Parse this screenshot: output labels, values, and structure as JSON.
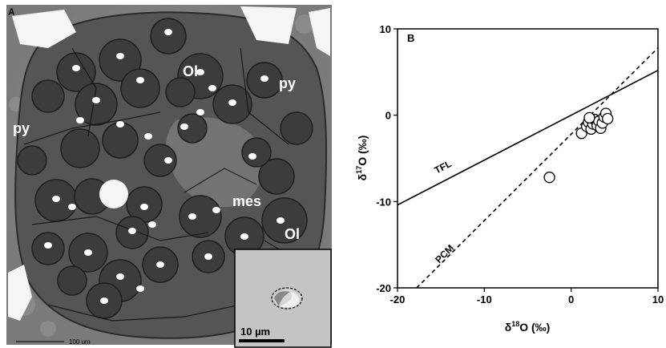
{
  "panel_a": {
    "letter": "A",
    "labels": {
      "py_left": "py",
      "py_right": "py",
      "ol_top": "Ol",
      "ol_bottom": "Ol",
      "mes": "mes"
    },
    "scalebar_label": "100 um",
    "inset_scalebar_label": "10 µm"
  },
  "chart_data": {
    "type": "scatter",
    "panel_letter": "B",
    "xlabel_prefix": "δ",
    "xlabel_sup": "18",
    "xlabel_suffix": "O (‰)",
    "ylabel_prefix": "δ",
    "ylabel_sup": "17",
    "ylabel_suffix": "O (‰)",
    "xlim": [
      -20,
      10
    ],
    "ylim": [
      -20,
      10
    ],
    "xticks": [
      "-20",
      "-10",
      "0",
      "10"
    ],
    "yticks": [
      "-20",
      "-10",
      "0",
      "10"
    ],
    "lines": [
      {
        "label": "TFL",
        "style": "solid",
        "slope": 0.52,
        "intercept": 0,
        "label_at": [
          -15.5,
          -6.8
        ]
      },
      {
        "label": "PCM",
        "style": "dashed",
        "slope": 1.0,
        "intercept": -2.2,
        "label_at": [
          -15.2,
          -17.2
        ]
      }
    ],
    "points": [
      [
        -2.5,
        -7.2
      ],
      [
        1.2,
        -2.1
      ],
      [
        1.8,
        -1.3
      ],
      [
        2.0,
        -0.8
      ],
      [
        2.3,
        -1.6
      ],
      [
        2.5,
        -1.0
      ],
      [
        2.7,
        -0.5
      ],
      [
        3.0,
        -1.2
      ],
      [
        3.2,
        -0.7
      ],
      [
        3.4,
        -1.5
      ],
      [
        3.6,
        -0.9
      ],
      [
        3.8,
        -0.2
      ],
      [
        4.0,
        0.2
      ],
      [
        4.2,
        -0.4
      ],
      [
        2.1,
        -0.3
      ]
    ]
  }
}
